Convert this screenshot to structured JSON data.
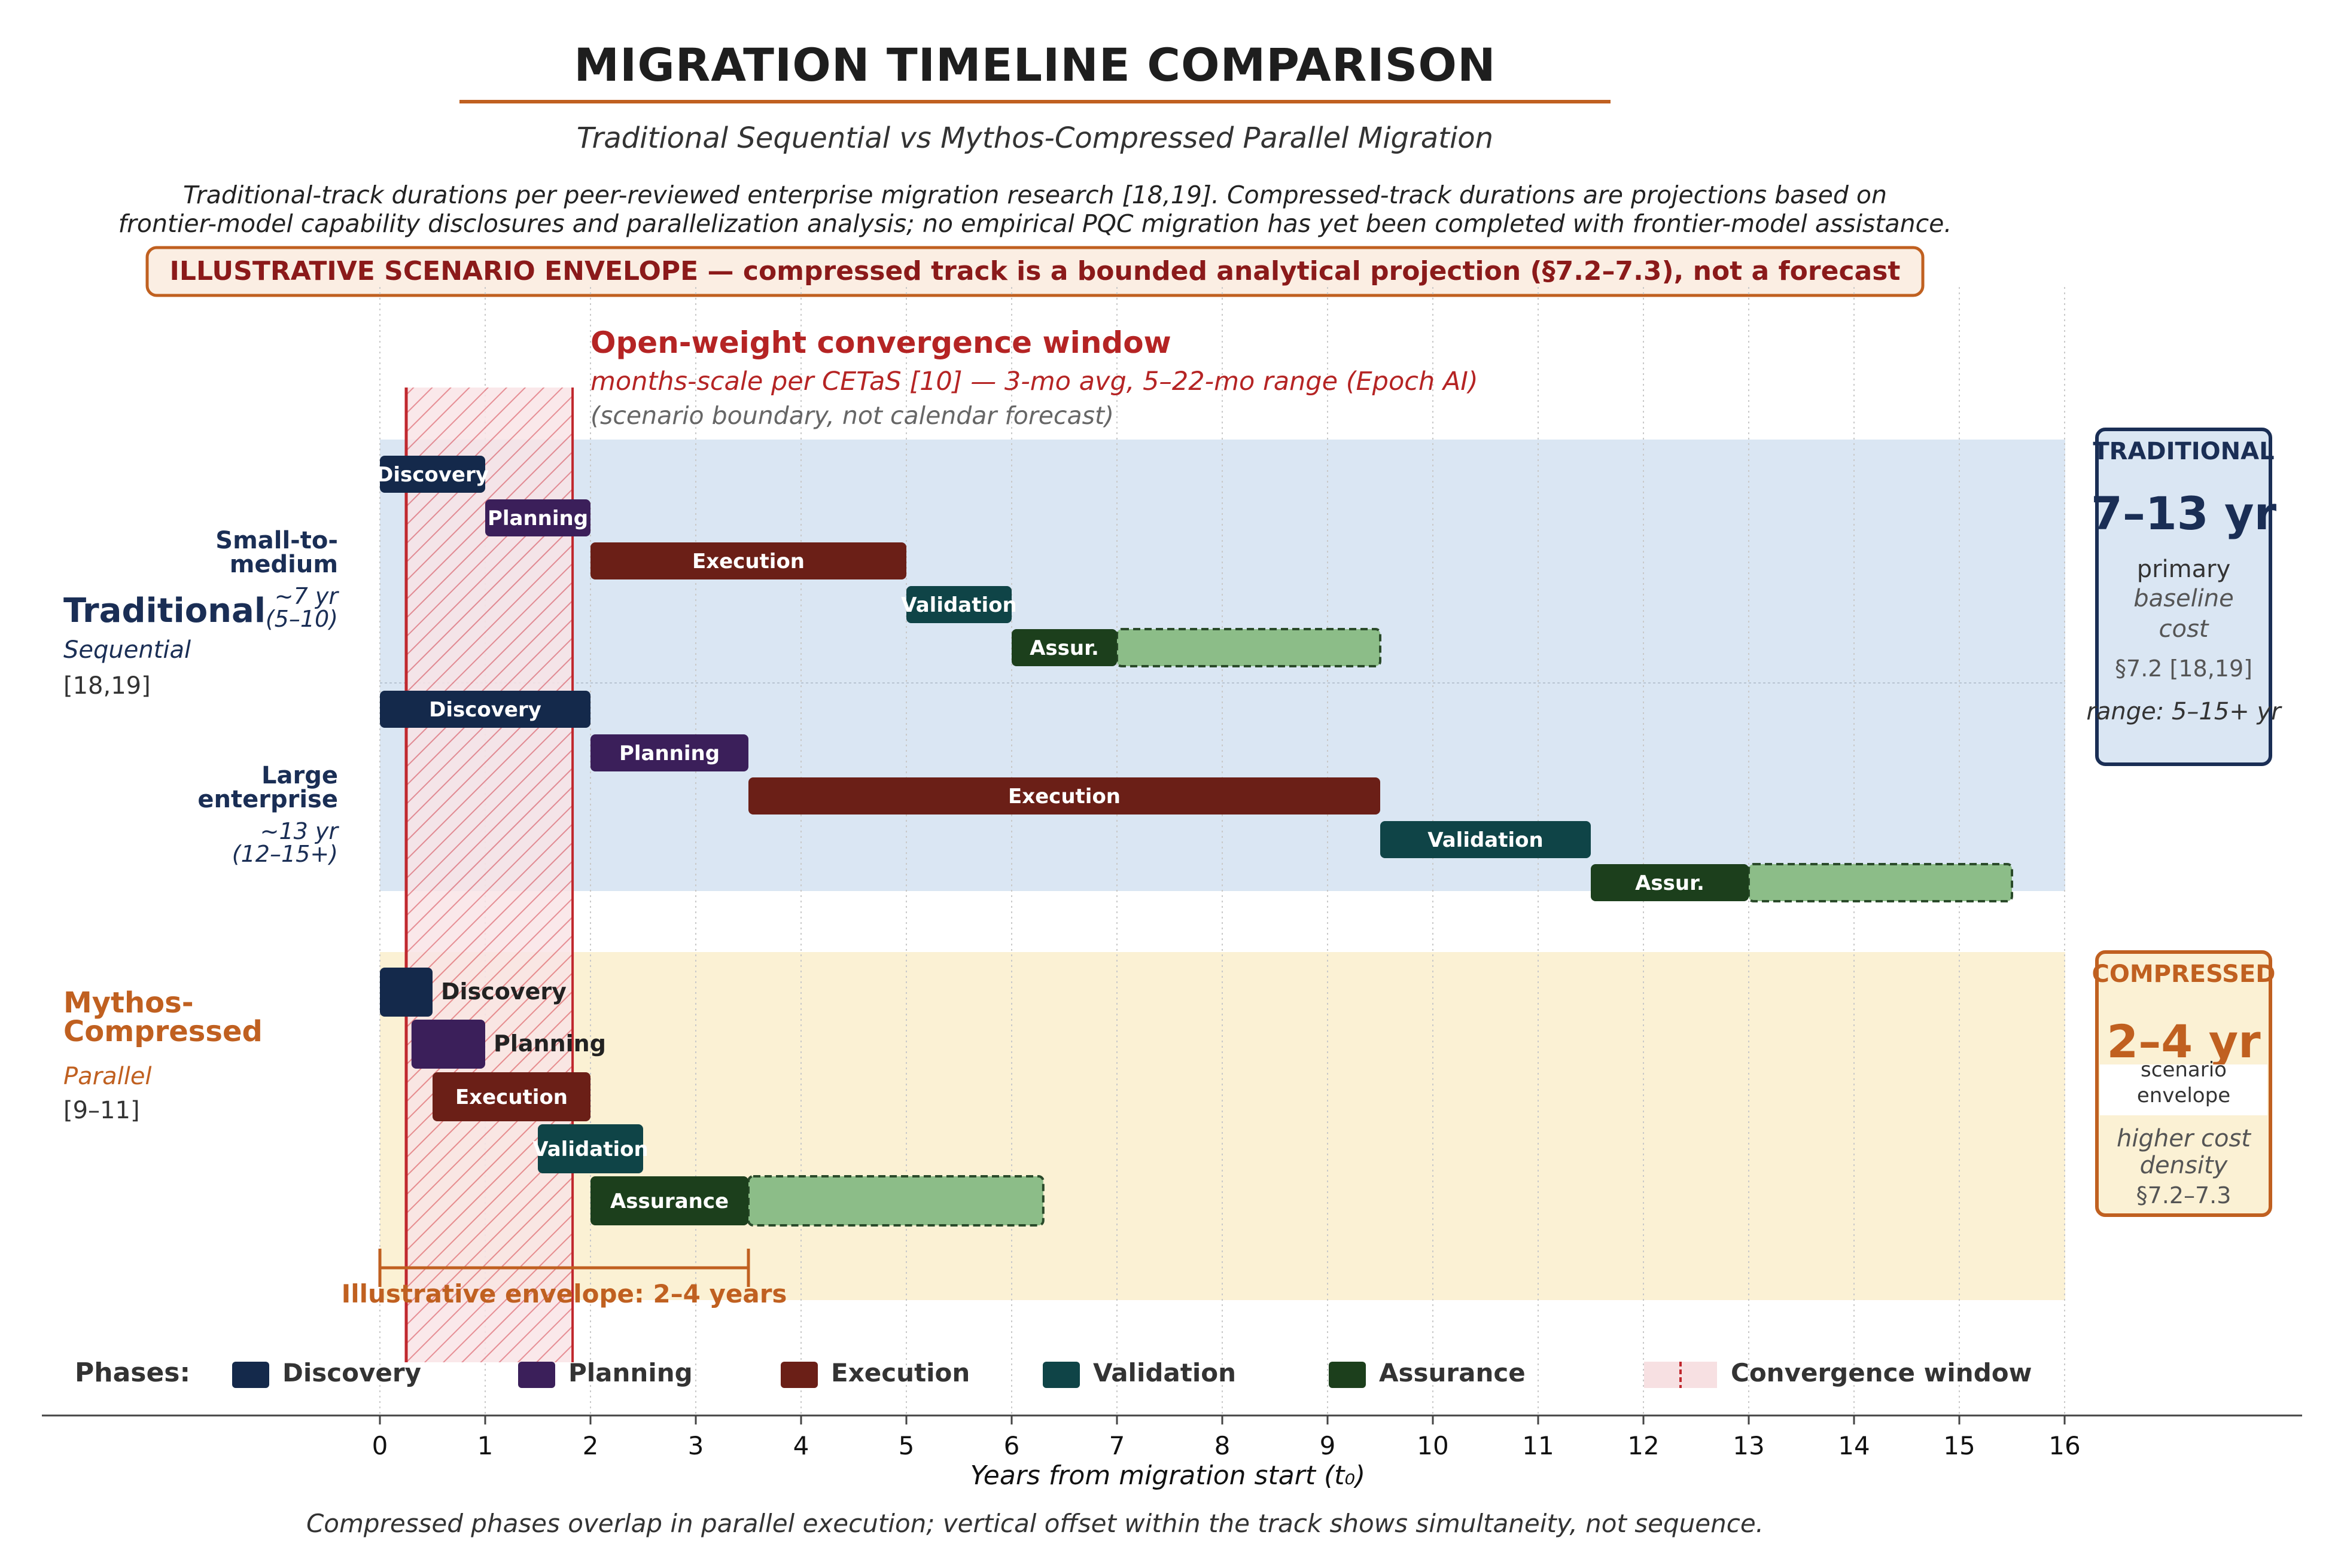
{
  "title": "MIGRATION TIMELINE COMPARISON",
  "subtitle": "Traditional Sequential vs Mythos-Compressed Parallel Migration",
  "note_lines": [
    "Traditional-track durations per peer-reviewed enterprise migration research [18,19]. Compressed-track durations are projections based on",
    "frontier-model capability disclosures and parallelization analysis; no empirical PQC migration has yet been completed with frontier-model assistance."
  ],
  "banner": "ILLUSTRATIVE SCENARIO ENVELOPE — compressed track is a bounded analytical projection (§7.2–7.3), not a forecast",
  "convergence": {
    "title": "Open-weight convergence window",
    "subtitle": "months-scale per CETaS [10] — 3-mo avg, 5–22-mo range (Epoch AI)",
    "note": "(scenario boundary, not calendar forecast)",
    "x_range": [
      0.25,
      1.83
    ]
  },
  "traditional_label": {
    "title": "Traditional",
    "subtitle": "Sequential",
    "refs": "[18,19]"
  },
  "compressed_label": {
    "title_lines": [
      "Mythos-",
      "Compressed"
    ],
    "subtitle": "Parallel",
    "refs": "[9–11]"
  },
  "rows": {
    "small": {
      "label_lines": [
        "Small-to-",
        "medium"
      ],
      "sub_lines": [
        "~7 yr",
        "(5–10)"
      ]
    },
    "large": {
      "label_lines": [
        "Large",
        "enterprise"
      ],
      "sub_lines": [
        "~13 yr",
        "(12–15+)"
      ]
    }
  },
  "side_traditional": {
    "head": "TRADITIONAL",
    "big": "7–13 yr",
    "lines": [
      "primary",
      "baseline",
      "cost",
      "§7.2 [18,19]",
      "range: 5–15+ yr"
    ]
  },
  "side_compressed": {
    "head": "COMPRESSED",
    "big": "2–4 yr",
    "lines": [
      "scenario",
      "envelope",
      "higher cost",
      "density",
      "§7.2–7.3"
    ]
  },
  "envelope": {
    "label": "Illustrative envelope: 2–4 years",
    "range": [
      0,
      3.5
    ]
  },
  "legend": {
    "head": "Phases:",
    "items": [
      "Discovery",
      "Planning",
      "Execution",
      "Validation",
      "Assurance",
      "Convergence window"
    ]
  },
  "colors": {
    "Discovery": "#14294b",
    "Planning": "#3b1f5a",
    "Execution": "#6b1f17",
    "Validation": "#0f4447",
    "Assurance": "#1c3f1c",
    "assurance_ext": "#8cbd88",
    "convergence_line": "#c0282e",
    "traditional_band": "#dae6f3",
    "compressed_band": "#fbf1d4",
    "compressed_accent": "#c06020"
  },
  "chart_data": {
    "type": "gantt",
    "xlabel": "Years from migration start (t₀)",
    "xlim": [
      0,
      16
    ],
    "xticks": [
      0,
      1,
      2,
      3,
      4,
      5,
      6,
      7,
      8,
      9,
      10,
      11,
      12,
      13,
      14,
      15,
      16
    ],
    "grid": "vertical",
    "tracks": [
      {
        "track": "Traditional",
        "row": "Small-to-medium",
        "bars": [
          {
            "phase": "Discovery",
            "label": "Discovery",
            "start": 0,
            "end": 1
          },
          {
            "phase": "Planning",
            "label": "Planning",
            "start": 1,
            "end": 2
          },
          {
            "phase": "Execution",
            "label": "Execution",
            "start": 2,
            "end": 5
          },
          {
            "phase": "Validation",
            "label": "Validation",
            "start": 5,
            "end": 6
          },
          {
            "phase": "Assurance",
            "label": "Assur.",
            "start": 6,
            "end": 7,
            "extension_end": 9.5
          }
        ]
      },
      {
        "track": "Traditional",
        "row": "Large enterprise",
        "bars": [
          {
            "phase": "Discovery",
            "label": "Discovery",
            "start": 0,
            "end": 2
          },
          {
            "phase": "Planning",
            "label": "Planning",
            "start": 2,
            "end": 3.5
          },
          {
            "phase": "Execution",
            "label": "Execution",
            "start": 3.5,
            "end": 9.5
          },
          {
            "phase": "Validation",
            "label": "Validation",
            "start": 9.5,
            "end": 11.5
          },
          {
            "phase": "Assurance",
            "label": "Assur.",
            "start": 11.5,
            "end": 13,
            "extension_end": 15.5
          }
        ]
      },
      {
        "track": "Mythos-Compressed",
        "row": "Parallel",
        "bars": [
          {
            "phase": "Discovery",
            "label": "Discovery",
            "start": 0,
            "end": 0.5,
            "label_outside": true
          },
          {
            "phase": "Planning",
            "label": "Planning",
            "start": 0.3,
            "end": 1,
            "label_outside": true
          },
          {
            "phase": "Execution",
            "label": "Execution",
            "start": 0.5,
            "end": 2
          },
          {
            "phase": "Validation",
            "label": "Validation",
            "start": 1.5,
            "end": 2.5
          },
          {
            "phase": "Assurance",
            "label": "Assurance",
            "start": 2,
            "end": 3.5,
            "extension_end": 6.3
          }
        ]
      }
    ]
  },
  "footnote": "Compressed phases overlap in parallel execution; vertical offset within the track shows simultaneity, not sequence."
}
